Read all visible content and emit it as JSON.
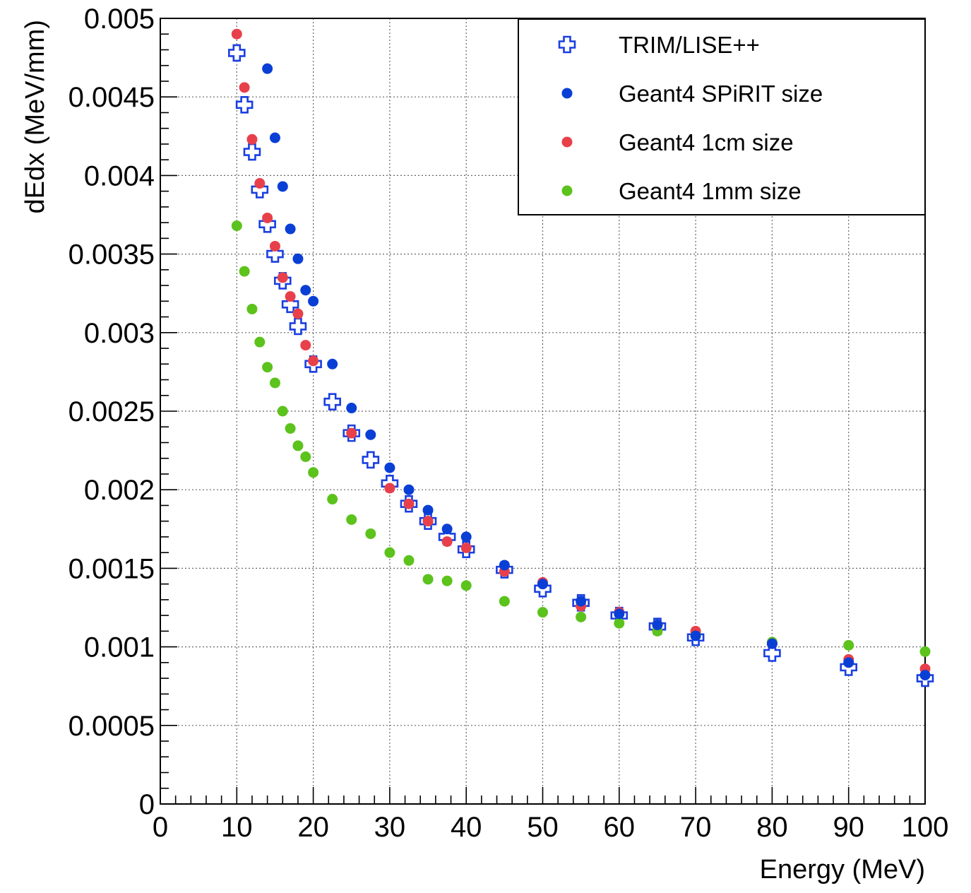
{
  "chart_data": {
    "type": "scatter",
    "title": "",
    "xlabel": "Energy (MeV)",
    "ylabel": "dEdx (MeV/mm)",
    "xlim": [
      0,
      100
    ],
    "ylim": [
      0,
      0.005
    ],
    "grid": true,
    "legend_position": "top-right",
    "x_ticks": [
      {
        "value": 0,
        "label": "0"
      },
      {
        "value": 10,
        "label": "10"
      },
      {
        "value": 20,
        "label": "20"
      },
      {
        "value": 30,
        "label": "30"
      },
      {
        "value": 40,
        "label": "40"
      },
      {
        "value": 50,
        "label": "50"
      },
      {
        "value": 60,
        "label": "60"
      },
      {
        "value": 70,
        "label": "70"
      },
      {
        "value": 80,
        "label": "80"
      },
      {
        "value": 90,
        "label": "90"
      },
      {
        "value": 100,
        "label": "100"
      }
    ],
    "y_ticks": [
      {
        "value": 0,
        "label": "0"
      },
      {
        "value": 0.0005,
        "label": "0.0005"
      },
      {
        "value": 0.001,
        "label": "0.001"
      },
      {
        "value": 0.0015,
        "label": "0.0015"
      },
      {
        "value": 0.002,
        "label": "0.002"
      },
      {
        "value": 0.0025,
        "label": "0.0025"
      },
      {
        "value": 0.003,
        "label": "0.003"
      },
      {
        "value": 0.0035,
        "label": "0.0035"
      },
      {
        "value": 0.004,
        "label": "0.004"
      },
      {
        "value": 0.0045,
        "label": "0.0045"
      },
      {
        "value": 0.005,
        "label": "0.005"
      }
    ],
    "series": [
      {
        "name": "TRIM/LISE++",
        "marker": "open-cross",
        "color": "#1a3fe0",
        "points": [
          [
            10,
            0.00478
          ],
          [
            11,
            0.00445
          ],
          [
            12,
            0.00415
          ],
          [
            13,
            0.00391
          ],
          [
            14,
            0.00369
          ],
          [
            15,
            0.0035
          ],
          [
            16,
            0.00333
          ],
          [
            17,
            0.00318
          ],
          [
            18,
            0.00304
          ],
          [
            20,
            0.0028
          ],
          [
            22.5,
            0.00256
          ],
          [
            25,
            0.00236
          ],
          [
            27.5,
            0.00219
          ],
          [
            30,
            0.00204
          ],
          [
            32.5,
            0.00191
          ],
          [
            35,
            0.0018
          ],
          [
            37.5,
            0.0017
          ],
          [
            40,
            0.00162
          ],
          [
            45,
            0.00149
          ],
          [
            50,
            0.00137
          ],
          [
            55,
            0.00128
          ],
          [
            60,
            0.0012
          ],
          [
            65,
            0.00113
          ],
          [
            70,
            0.00106
          ],
          [
            80,
            0.00096
          ],
          [
            90,
            0.00087
          ],
          [
            100,
            0.0008
          ]
        ]
      },
      {
        "name": "Geant4 SPiRIT size",
        "marker": "filled-circle",
        "color": "#0a3fd6",
        "points": [
          [
            14,
            0.00468
          ],
          [
            15,
            0.00424
          ],
          [
            16,
            0.00393
          ],
          [
            17,
            0.00366
          ],
          [
            18,
            0.00347
          ],
          [
            19,
            0.00327
          ],
          [
            20,
            0.0032
          ],
          [
            22.5,
            0.0028
          ],
          [
            25,
            0.00252
          ],
          [
            27.5,
            0.00235
          ],
          [
            30,
            0.00214
          ],
          [
            32.5,
            0.002
          ],
          [
            35,
            0.00187
          ],
          [
            37.5,
            0.00175
          ],
          [
            40,
            0.0017
          ],
          [
            45,
            0.00152
          ],
          [
            50,
            0.0014
          ],
          [
            55,
            0.00129
          ],
          [
            60,
            0.00121
          ],
          [
            65,
            0.00114
          ],
          [
            70,
            0.00107
          ],
          [
            80,
            0.00102
          ],
          [
            90,
            0.0009
          ],
          [
            100,
            0.00082
          ]
        ]
      },
      {
        "name": "Geant4 1cm size",
        "marker": "filled-circle",
        "color": "#e8404a",
        "points": [
          [
            10,
            0.0049
          ],
          [
            11,
            0.00456
          ],
          [
            12,
            0.00423
          ],
          [
            13,
            0.00395
          ],
          [
            14,
            0.00373
          ],
          [
            15,
            0.00355
          ],
          [
            16,
            0.00335
          ],
          [
            17,
            0.00323
          ],
          [
            18,
            0.00312
          ],
          [
            19,
            0.00292
          ],
          [
            20,
            0.00282
          ],
          [
            25,
            0.00236
          ],
          [
            30,
            0.00201
          ],
          [
            32.5,
            0.00191
          ],
          [
            35,
            0.0018
          ],
          [
            37.5,
            0.00167
          ],
          [
            40,
            0.00163
          ],
          [
            45,
            0.00148
          ],
          [
            50,
            0.00141
          ],
          [
            55,
            0.00126
          ],
          [
            60,
            0.00122
          ],
          [
            65,
            0.00114
          ],
          [
            70,
            0.0011
          ],
          [
            80,
            0.00102
          ],
          [
            90,
            0.00092
          ],
          [
            100,
            0.00086
          ]
        ]
      },
      {
        "name": "Geant4 1mm size",
        "marker": "filled-circle",
        "color": "#5cc21c",
        "points": [
          [
            10,
            0.00368
          ],
          [
            11,
            0.00339
          ],
          [
            12,
            0.00315
          ],
          [
            13,
            0.00294
          ],
          [
            14,
            0.00278
          ],
          [
            15,
            0.00268
          ],
          [
            16,
            0.0025
          ],
          [
            17,
            0.00239
          ],
          [
            18,
            0.00228
          ],
          [
            19,
            0.00221
          ],
          [
            20,
            0.00211
          ],
          [
            22.5,
            0.00194
          ],
          [
            25,
            0.00181
          ],
          [
            27.5,
            0.00172
          ],
          [
            30,
            0.0016
          ],
          [
            32.5,
            0.00155
          ],
          [
            35,
            0.00143
          ],
          [
            37.5,
            0.00142
          ],
          [
            40,
            0.00139
          ],
          [
            45,
            0.00129
          ],
          [
            50,
            0.00122
          ],
          [
            55,
            0.00119
          ],
          [
            60,
            0.00115
          ],
          [
            65,
            0.0011
          ],
          [
            70,
            0.00108
          ],
          [
            80,
            0.00103
          ],
          [
            90,
            0.00101
          ],
          [
            100,
            0.00097
          ]
        ]
      }
    ]
  }
}
